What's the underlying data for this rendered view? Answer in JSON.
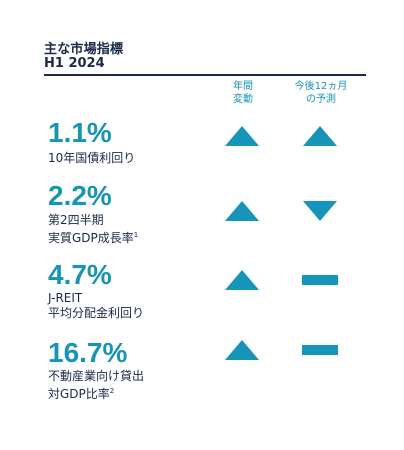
{
  "header": {
    "title": "主な市場指標",
    "subtitle": "H1 2024"
  },
  "columns": {
    "annual_change_line1": "年間",
    "annual_change_line2": "変動",
    "outlook_line1": "今後12ヵ月",
    "outlook_line2": "の予測"
  },
  "indicators": [
    {
      "value": "1.1%",
      "label_line1": "10年国債利回り",
      "label_line2": "",
      "label_line2_sup": "",
      "annual_change": "up",
      "outlook": "up"
    },
    {
      "value": "2.2%",
      "label_line1": "第2四半期",
      "label_line2": "実質GDP成長率",
      "label_line2_sup": "1",
      "annual_change": "up",
      "outlook": "down"
    },
    {
      "value": "4.7%",
      "label_line1": "J-REIT",
      "label_line2": "平均分配金利回り",
      "label_line2_sup": "",
      "annual_change": "up",
      "outlook": "flat"
    },
    {
      "value": "16.7%",
      "label_line1": "不動産業向け貸出",
      "label_line2": "対GDP比率",
      "label_line2_sup": "2",
      "annual_change": "up",
      "outlook": "flat"
    }
  ],
  "colors": {
    "accent": "#1795b8",
    "text": "#1b2a4a"
  },
  "icons": {
    "up": "triangle-up-icon",
    "down": "triangle-down-icon",
    "flat": "dash-icon"
  }
}
